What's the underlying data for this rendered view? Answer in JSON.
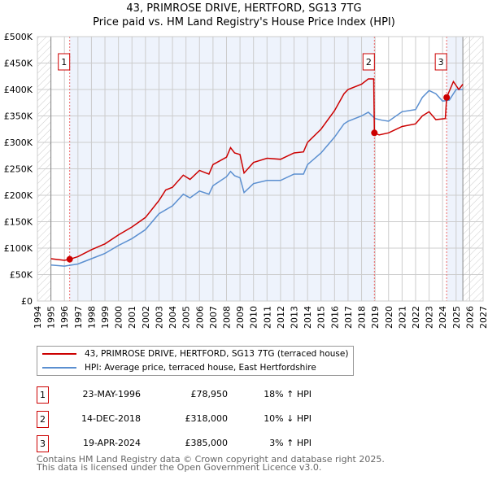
{
  "chart_data": {
    "type": "line",
    "title": "43, PRIMROSE DRIVE, HERTFORD, SG13 7TG",
    "subtitle": "Price paid vs. HM Land Registry's House Price Index (HPI)",
    "xlim": [
      1994,
      2027
    ],
    "ylim": [
      0,
      500000
    ],
    "x_ticks": [
      "1994",
      "1995",
      "1996",
      "1997",
      "1998",
      "1999",
      "2000",
      "2001",
      "2002",
      "2003",
      "2004",
      "2005",
      "2006",
      "2007",
      "2008",
      "2009",
      "2010",
      "2011",
      "2012",
      "2013",
      "2014",
      "2015",
      "2016",
      "2017",
      "2018",
      "2019",
      "2020",
      "2021",
      "2022",
      "2023",
      "2024",
      "2025",
      "2026",
      "2027"
    ],
    "y_ticks": [
      "£0",
      "£50K",
      "£100K",
      "£150K",
      "£200K",
      "£250K",
      "£300K",
      "£350K",
      "£400K",
      "£450K",
      "£500K"
    ],
    "data_range": [
      1995,
      2025.5
    ],
    "series": [
      {
        "name": "43, PRIMROSE DRIVE, HERTFORD, SG13 7TG (terraced house)",
        "color": "#cc0000",
        "x": [
          1995,
          1996,
          1996.4,
          1997,
          1998,
          1999,
          2000,
          2001,
          2002,
          2003,
          2003.5,
          2004,
          2004.8,
          2005.3,
          2006,
          2006.7,
          2007,
          2008,
          2008.3,
          2008.6,
          2009,
          2009.3,
          2010,
          2011,
          2012,
          2013,
          2013.7,
          2014,
          2015,
          2016,
          2016.7,
          2017,
          2018,
          2018.5,
          2018.9,
          2018.95,
          2019.3,
          2020,
          2021,
          2022,
          2022.5,
          2023,
          2023.5,
          2024.2,
          2024.3,
          2024.8,
          2025.2,
          2025.5
        ],
        "y": [
          80000,
          77000,
          78950,
          84000,
          97000,
          108000,
          125000,
          140000,
          158000,
          190000,
          210000,
          215000,
          238000,
          230000,
          247000,
          240000,
          258000,
          272000,
          290000,
          280000,
          277000,
          242000,
          262000,
          270000,
          268000,
          280000,
          282000,
          300000,
          325000,
          360000,
          392000,
          400000,
          410000,
          420000,
          420000,
          318000,
          314000,
          318000,
          330000,
          335000,
          350000,
          358000,
          343000,
          345000,
          385000,
          415000,
          400000,
          410000
        ]
      },
      {
        "name": "HPI: Average price, terraced house, East Hertfordshire",
        "color": "#5b8fd0",
        "x": [
          1995,
          1996,
          1997,
          1998,
          1999,
          2000,
          2001,
          2002,
          2003,
          2004,
          2004.8,
          2005.3,
          2006,
          2006.7,
          2007,
          2008,
          2008.3,
          2008.6,
          2009,
          2009.3,
          2010,
          2011,
          2012,
          2013,
          2013.7,
          2014,
          2015,
          2016,
          2016.7,
          2017,
          2018,
          2018.5,
          2019,
          2019.5,
          2020,
          2021,
          2022,
          2022.5,
          2023,
          2023.5,
          2024,
          2024.5,
          2025,
          2025.5
        ],
        "y": [
          68000,
          66000,
          70000,
          80000,
          90000,
          105000,
          118000,
          135000,
          165000,
          180000,
          202000,
          195000,
          208000,
          202000,
          218000,
          235000,
          245000,
          237000,
          233000,
          205000,
          222000,
          228000,
          228000,
          240000,
          240000,
          258000,
          280000,
          310000,
          335000,
          340000,
          350000,
          357000,
          345000,
          342000,
          340000,
          358000,
          362000,
          385000,
          398000,
          392000,
          378000,
          380000,
          400000,
          400000
        ]
      }
    ],
    "sales": [
      {
        "label": "1",
        "x": 1996.39,
        "price": 78950,
        "date": "23-MAY-1996",
        "price_text": "£78,950",
        "hpi": "18% ↑ HPI"
      },
      {
        "label": "2",
        "x": 2018.95,
        "price": 318000,
        "date": "14-DEC-2018",
        "price_text": "£318,000",
        "hpi": "10% ↓ HPI"
      },
      {
        "label": "3",
        "x": 2024.3,
        "price": 385000,
        "date": "19-APR-2024",
        "price_text": "£385,000",
        "hpi": "3% ↑ HPI"
      }
    ]
  },
  "legend": {
    "property": "43, PRIMROSE DRIVE, HERTFORD, SG13 7TG (terraced house)",
    "hpi": "HPI: Average price, terraced house, East Hertfordshire"
  },
  "footer": {
    "line1": "Contains HM Land Registry data © Crown copyright and database right 2025.",
    "line2": "This data is licensed under the Open Government Licence v3.0."
  }
}
